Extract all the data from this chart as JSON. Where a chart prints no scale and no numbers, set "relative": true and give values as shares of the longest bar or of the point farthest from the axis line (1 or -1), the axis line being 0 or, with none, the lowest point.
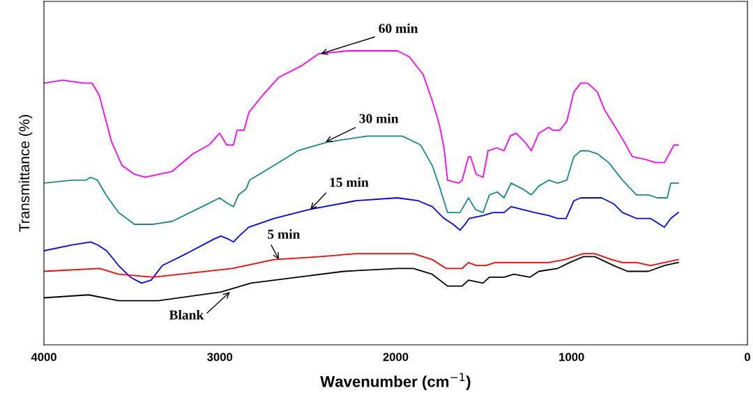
{
  "chart_data": {
    "type": "line",
    "relative": true,
    "xlabel": "Wavenumber (cm$^{−1}$)",
    "ylabel": "Transmittance (%)",
    "xlim": [
      4000,
      0
    ],
    "xticks": [
      4000,
      3000,
      2000,
      1000,
      0
    ],
    "series": [
      {
        "color": "#ff00ff",
        "x": [
          4000,
          3893,
          3774,
          3726,
          3686,
          3655,
          3615,
          3556,
          3485,
          3425,
          3271,
          3152,
          3061,
          3001,
          2961,
          2922,
          2902,
          2862,
          2835,
          2755,
          2664,
          2533,
          2438,
          2268,
          1990,
          1923,
          1844,
          1792,
          1752,
          1725,
          1705,
          1641,
          1622,
          1586,
          1574,
          1542,
          1503,
          1475,
          1423,
          1384,
          1348,
          1316,
          1265,
          1229,
          1186,
          1130,
          1106,
          1067,
          1027,
          987,
          948,
          908,
          853,
          813,
          761,
          710,
          654,
          575,
          524,
          472,
          417,
          393
        ],
        "values": [
          0.89,
          0.9,
          0.89,
          0.89,
          0.85,
          0.78,
          0.69,
          0.61,
          0.58,
          0.57,
          0.59,
          0.65,
          0.68,
          0.72,
          0.68,
          0.68,
          0.73,
          0.73,
          0.79,
          0.85,
          0.91,
          0.95,
          0.99,
          1.0,
          1.0,
          0.98,
          0.92,
          0.83,
          0.75,
          0.67,
          0.56,
          0.55,
          0.56,
          0.64,
          0.64,
          0.58,
          0.57,
          0.66,
          0.67,
          0.66,
          0.71,
          0.72,
          0.69,
          0.66,
          0.72,
          0.74,
          0.73,
          0.73,
          0.76,
          0.86,
          0.89,
          0.89,
          0.86,
          0.8,
          0.75,
          0.7,
          0.64,
          0.63,
          0.62,
          0.62,
          0.68,
          0.68
        ]
      },
      {
        "color": "#1a8a80",
        "x": [
          4000,
          3841,
          3762,
          3734,
          3695,
          3647,
          3576,
          3485,
          3378,
          3271,
          3100,
          3001,
          2953,
          2922,
          2894,
          2850,
          2831,
          2692,
          2557,
          2387,
          2161,
          1990,
          1962,
          1859,
          1792,
          1752,
          1705,
          1634,
          1586,
          1546,
          1503,
          1467,
          1423,
          1384,
          1344,
          1277,
          1229,
          1186,
          1130,
          1079,
          1027,
          987,
          948,
          908,
          853,
          789,
          710,
          631,
          563,
          512,
          456,
          436,
          393
        ],
        "values": [
          0.55,
          0.56,
          0.56,
          0.57,
          0.56,
          0.51,
          0.45,
          0.41,
          0.41,
          0.42,
          0.47,
          0.5,
          0.48,
          0.47,
          0.51,
          0.53,
          0.56,
          0.61,
          0.66,
          0.69,
          0.71,
          0.71,
          0.71,
          0.68,
          0.61,
          0.54,
          0.45,
          0.45,
          0.5,
          0.46,
          0.45,
          0.51,
          0.52,
          0.5,
          0.55,
          0.53,
          0.51,
          0.54,
          0.56,
          0.55,
          0.56,
          0.64,
          0.66,
          0.66,
          0.65,
          0.62,
          0.56,
          0.51,
          0.51,
          0.5,
          0.5,
          0.55,
          0.55
        ]
      },
      {
        "color": "#0000ff",
        "x": [
          4000,
          3841,
          3734,
          3695,
          3643,
          3576,
          3508,
          3445,
          3390,
          3326,
          3191,
          3033,
          2993,
          2953,
          2922,
          2890,
          2835,
          2692,
          2494,
          2228,
          1990,
          1871,
          1792,
          1725,
          1673,
          1634,
          1606,
          1582,
          1503,
          1447,
          1384,
          1344,
          1277,
          1209,
          1130,
          1079,
          1031,
          987,
          948,
          880,
          829,
          761,
          710,
          631,
          551,
          472,
          436,
          393
        ],
        "values": [
          0.32,
          0.34,
          0.35,
          0.34,
          0.32,
          0.27,
          0.23,
          0.21,
          0.22,
          0.27,
          0.31,
          0.36,
          0.37,
          0.36,
          0.35,
          0.37,
          0.4,
          0.43,
          0.46,
          0.49,
          0.5,
          0.49,
          0.47,
          0.43,
          0.41,
          0.39,
          0.41,
          0.43,
          0.44,
          0.45,
          0.45,
          0.47,
          0.46,
          0.45,
          0.44,
          0.43,
          0.43,
          0.49,
          0.5,
          0.5,
          0.5,
          0.48,
          0.45,
          0.43,
          0.43,
          0.4,
          0.43,
          0.45
        ]
      },
      {
        "color": "#ff0000",
        "x": [
          4000,
          3683,
          3576,
          3378,
          2930,
          2692,
          2426,
          2228,
          1990,
          1899,
          1792,
          1713,
          1622,
          1586,
          1542,
          1487,
          1435,
          1344,
          1237,
          1130,
          1039,
          987,
          932,
          868,
          773,
          710,
          631,
          551,
          472,
          393
        ],
        "values": [
          0.25,
          0.26,
          0.24,
          0.23,
          0.26,
          0.29,
          0.3,
          0.31,
          0.31,
          0.31,
          0.29,
          0.26,
          0.26,
          0.28,
          0.27,
          0.27,
          0.28,
          0.28,
          0.28,
          0.28,
          0.29,
          0.3,
          0.31,
          0.31,
          0.29,
          0.28,
          0.28,
          0.27,
          0.28,
          0.29
        ]
      },
      {
        "color": "#000000",
        "x": [
          4000,
          3746,
          3576,
          3350,
          2993,
          2823,
          2557,
          2295,
          1990,
          1899,
          1792,
          1705,
          1622,
          1586,
          1503,
          1467,
          1384,
          1328,
          1237,
          1186,
          1079,
          1011,
          932,
          868,
          761,
          682,
          563,
          472,
          393
        ],
        "values": [
          0.16,
          0.17,
          0.15,
          0.15,
          0.18,
          0.21,
          0.23,
          0.25,
          0.26,
          0.26,
          0.24,
          0.2,
          0.2,
          0.22,
          0.21,
          0.23,
          0.23,
          0.24,
          0.23,
          0.25,
          0.26,
          0.28,
          0.3,
          0.3,
          0.27,
          0.25,
          0.25,
          0.27,
          0.28
        ]
      }
    ],
    "annotations": [
      {
        "text": "60 min",
        "x": 2426,
        "y": 0.99
      },
      {
        "text": "30 min",
        "x": 2399,
        "y": 0.69
      },
      {
        "text": "15 min",
        "x": 2486,
        "y": 0.46
      },
      {
        "text": "5 min",
        "x": 2664,
        "y": 0.29
      },
      {
        "text": "Blank",
        "x": 2942,
        "y": 0.18
      }
    ]
  }
}
